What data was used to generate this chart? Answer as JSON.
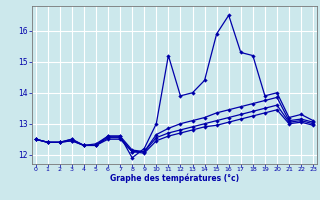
{
  "xlabel": "Graphe des températures (°c)",
  "bg_color": "#cce8ec",
  "grid_color": "#ffffff",
  "line_color": "#0000aa",
  "x": [
    0,
    1,
    2,
    3,
    4,
    5,
    6,
    7,
    8,
    9,
    10,
    11,
    12,
    13,
    14,
    15,
    16,
    17,
    18,
    19,
    20,
    21,
    22,
    23
  ],
  "series1": [
    12.5,
    12.4,
    12.4,
    12.5,
    12.3,
    12.3,
    12.6,
    12.6,
    11.9,
    12.2,
    13.0,
    15.2,
    13.9,
    14.0,
    14.4,
    15.9,
    16.5,
    15.3,
    15.2,
    13.9,
    14.0,
    13.2,
    13.3,
    13.1
  ],
  "series2": [
    12.5,
    12.4,
    12.4,
    12.5,
    12.3,
    12.35,
    12.6,
    12.6,
    12.15,
    12.1,
    12.65,
    12.85,
    13.0,
    13.1,
    13.2,
    13.35,
    13.45,
    13.55,
    13.65,
    13.75,
    13.85,
    13.1,
    13.15,
    13.05
  ],
  "series3": [
    12.5,
    12.4,
    12.4,
    12.45,
    12.3,
    12.3,
    12.55,
    12.55,
    12.1,
    12.1,
    12.55,
    12.7,
    12.8,
    12.9,
    13.0,
    13.1,
    13.2,
    13.3,
    13.4,
    13.5,
    13.6,
    13.05,
    13.1,
    13.0
  ],
  "series4": [
    12.5,
    12.4,
    12.4,
    12.45,
    12.3,
    12.3,
    12.5,
    12.5,
    12.1,
    12.05,
    12.45,
    12.6,
    12.7,
    12.8,
    12.9,
    12.95,
    13.05,
    13.15,
    13.25,
    13.35,
    13.45,
    13.0,
    13.05,
    12.95
  ],
  "ylim": [
    11.7,
    16.8
  ],
  "yticks": [
    12,
    13,
    14,
    15,
    16
  ],
  "xlim": [
    -0.3,
    23.3
  ],
  "xticks": [
    0,
    1,
    2,
    3,
    4,
    5,
    6,
    7,
    8,
    9,
    10,
    11,
    12,
    13,
    14,
    15,
    16,
    17,
    18,
    19,
    20,
    21,
    22,
    23
  ]
}
